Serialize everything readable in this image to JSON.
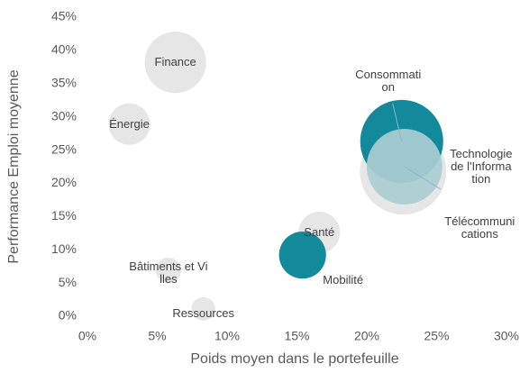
{
  "chart_data": {
    "type": "bubble",
    "x_label": "Poids moyen dans le portefeuille",
    "y_label": "Performance Emploi moyenne",
    "series": [
      {
        "names": [
          "Finance",
          "Énergie",
          "Bâtiments et Villes",
          "Ressources",
          "Santé",
          "Mobilité",
          "Télécommunications",
          "Consommation",
          "Technologie de l'Information"
        ],
        "x": [
          6.3,
          3.0,
          5.8,
          8.3,
          16.6,
          15.4,
          22.6,
          22.5,
          22.7
        ],
        "values": [
          38.2,
          28.9,
          6.9,
          1.1,
          12.6,
          9.2,
          21.8,
          26.3,
          22.5
        ],
        "sizes": [
          11.6,
          5.3,
          2.0,
          1.7,
          5.3,
          6.8,
          23.0,
          21.2,
          17.6
        ],
        "colors": [
          "#e6e6e6",
          "#e6e6e6",
          "#e6e6e6",
          "#e6e6e6",
          "#e6e6e6",
          "#138a9c",
          "#e6e6e6",
          "#138a9c",
          "#aacdd3"
        ]
      }
    ],
    "xlim": [
      0,
      30
    ],
    "xticks": [
      {
        "value": 0,
        "label": "0%"
      },
      {
        "value": 5,
        "label": "5%"
      },
      {
        "value": 10,
        "label": "10%"
      },
      {
        "value": 15,
        "label": "15%"
      },
      {
        "value": 20,
        "label": "20%"
      },
      {
        "value": 25,
        "label": "25%"
      },
      {
        "value": 30,
        "label": "30%"
      }
    ],
    "ylim": [
      0,
      45
    ],
    "yticks": [
      {
        "value": 0,
        "label": "0%"
      },
      {
        "value": 5,
        "label": "5%"
      },
      {
        "value": 10,
        "label": "10%"
      },
      {
        "value": 15,
        "label": "15%"
      },
      {
        "value": 20,
        "label": "20%"
      },
      {
        "value": 25,
        "label": "25%"
      },
      {
        "value": 30,
        "label": "30%"
      },
      {
        "value": 35,
        "label": "35%"
      },
      {
        "value": 40,
        "label": "40%"
      },
      {
        "value": 45,
        "label": "45%"
      }
    ],
    "grid": false
  }
}
